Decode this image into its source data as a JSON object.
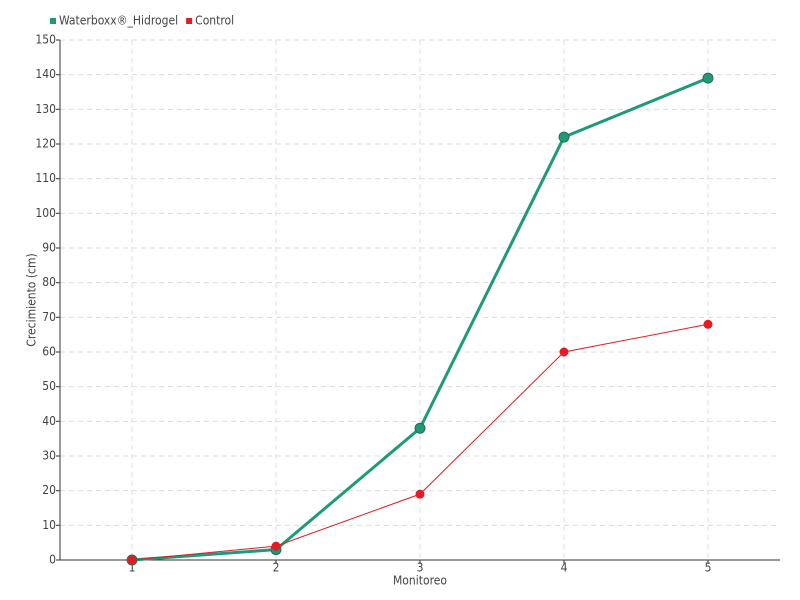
{
  "chart_data": {
    "type": "line",
    "x_label": "Monitoreo",
    "y_label": "Crecimiento (cm)",
    "x": [
      1,
      2,
      3,
      4,
      5
    ],
    "series": [
      {
        "name": "Waterboxx®_Hidrogel",
        "color": "#1f9a78",
        "values": [
          0,
          3,
          38,
          122,
          139
        ]
      },
      {
        "name": "Control",
        "color": "#e31b23",
        "values": [
          0,
          4,
          19,
          60,
          68
        ]
      }
    ],
    "xlim": [
      0.5,
      5.5
    ],
    "xticks": [
      1,
      2,
      3,
      4,
      5
    ],
    "ylim": [
      0,
      150
    ],
    "yticks": [
      0,
      10,
      20,
      30,
      40,
      50,
      60,
      70,
      80,
      90,
      100,
      110,
      120,
      130,
      140,
      150
    ],
    "grid": true,
    "legend": "top-left"
  }
}
